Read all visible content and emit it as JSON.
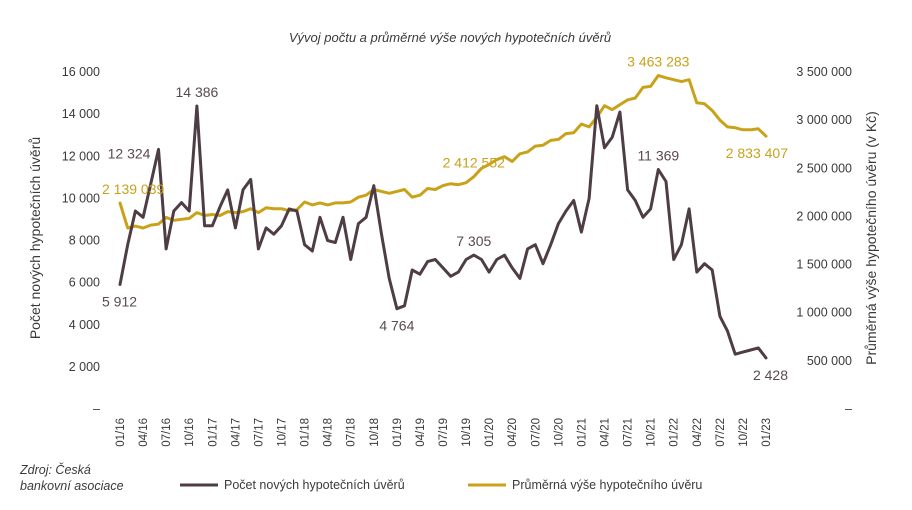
{
  "chart_data": {
    "type": "line",
    "title": "Vývoj počtu a průměrné výše nových hypotečních úvěrů",
    "source": "Zdroj: Česká bankovní asociace",
    "y_left": {
      "label": "Počet nových hypotečních úvěrů",
      "range": [
        0,
        16000
      ],
      "ticks": [
        0,
        2000,
        4000,
        6000,
        8000,
        10000,
        12000,
        14000,
        16000
      ],
      "tick_labels": [
        "–",
        "2 000",
        "4 000",
        "6 000",
        "8 000",
        "10 000",
        "12 000",
        "14 000",
        "16 000"
      ]
    },
    "y_right": {
      "label": "Průměrná výše hypotečního úvěru (v Kč)",
      "range": [
        0,
        3500000
      ],
      "ticks": [
        0,
        500000,
        1000000,
        1500000,
        2000000,
        2500000,
        3000000,
        3500000
      ],
      "tick_labels": [
        "–",
        "500 000",
        "1 000 000",
        "1 500 000",
        "2 000 000",
        "2 500 000",
        "3 000 000",
        "3 500 000"
      ]
    },
    "x_tick_labels": [
      "01/16",
      "04/16",
      "07/16",
      "10/16",
      "01/17",
      "04/17",
      "07/17",
      "10/17",
      "01/18",
      "04/18",
      "07/18",
      "10/18",
      "01/19",
      "04/19",
      "07/19",
      "10/19",
      "01/20",
      "04/20",
      "07/20",
      "10/20",
      "01/21",
      "04/21",
      "07/21",
      "10/21",
      "01/22",
      "04/22",
      "07/22",
      "10/22",
      "01/23"
    ],
    "x_start": "01/16",
    "series": [
      {
        "name": "Počet nových hypotečních úvěrů",
        "color": "#4e3d45",
        "axis": "left",
        "values": [
          5912,
          7800,
          9400,
          9100,
          10700,
          12324,
          7600,
          9400,
          9800,
          9400,
          14386,
          8700,
          8700,
          9600,
          10400,
          8600,
          10400,
          10900,
          7600,
          8600,
          8300,
          8700,
          9500,
          9400,
          7800,
          7500,
          9100,
          8000,
          7900,
          9100,
          7100,
          8800,
          9100,
          10600,
          8300,
          6200,
          4764,
          4900,
          6600,
          6400,
          7000,
          7100,
          6700,
          6300,
          6500,
          7100,
          7305,
          7100,
          6500,
          7100,
          7300,
          6700,
          6200,
          7600,
          7800,
          6900,
          7800,
          8800,
          9400,
          9900,
          8400,
          10000,
          14400,
          12400,
          12900,
          14100,
          10400,
          9900,
          9100,
          9500,
          11369,
          10800,
          7100,
          7800,
          9500,
          6500,
          6900,
          6600,
          4400,
          3700,
          2600,
          2700,
          2800,
          2900,
          2428
        ]
      },
      {
        "name": "Průměrná výše hypotečního úvěru",
        "color": "#c9a21a",
        "axis": "right",
        "values": [
          2139039,
          1880000,
          1900000,
          1880000,
          1910000,
          1920000,
          1990000,
          1960000,
          1970000,
          1980000,
          2040000,
          2010000,
          2020000,
          2010000,
          2050000,
          2040000,
          2050000,
          2080000,
          2040000,
          2090000,
          2080000,
          2080000,
          2060000,
          2070000,
          2150000,
          2120000,
          2140000,
          2120000,
          2140000,
          2140000,
          2150000,
          2200000,
          2220000,
          2280000,
          2260000,
          2240000,
          2260000,
          2280000,
          2200000,
          2220000,
          2290000,
          2280000,
          2320000,
          2340000,
          2330000,
          2350000,
          2412552,
          2500000,
          2540000,
          2590000,
          2620000,
          2570000,
          2650000,
          2670000,
          2730000,
          2740000,
          2790000,
          2800000,
          2860000,
          2870000,
          2960000,
          2930000,
          3030000,
          3150000,
          3110000,
          3160000,
          3210000,
          3230000,
          3340000,
          3350000,
          3463283,
          3440000,
          3420000,
          3400000,
          3420000,
          3180000,
          3170000,
          3100000,
          3000000,
          2930000,
          2920000,
          2900000,
          2900000,
          2910000,
          2833407
        ]
      }
    ],
    "data_labels": [
      {
        "series": 0,
        "index": 0,
        "text": "5 912",
        "pos": "below"
      },
      {
        "series": 0,
        "index": 5,
        "text": "12 324",
        "pos": "left"
      },
      {
        "series": 0,
        "index": 10,
        "text": "14 386",
        "pos": "above"
      },
      {
        "series": 0,
        "index": 36,
        "text": "4 764",
        "pos": "below"
      },
      {
        "series": 0,
        "index": 46,
        "text": "7 305",
        "pos": "above"
      },
      {
        "series": 0,
        "index": 70,
        "text": "11 369",
        "pos": "above"
      },
      {
        "series": 0,
        "index": 84,
        "text": "2 428",
        "pos": "below"
      },
      {
        "series": 1,
        "index": 0,
        "text": "2 139 039",
        "pos": "above"
      },
      {
        "series": 1,
        "index": 46,
        "text": "2 412 552",
        "pos": "above"
      },
      {
        "series": 1,
        "index": 70,
        "text": "3 463 283",
        "pos": "above"
      },
      {
        "series": 1,
        "index": 84,
        "text": "2 833 407",
        "pos": "below"
      }
    ],
    "legend": {
      "placement": "bottom"
    },
    "grid": false
  }
}
